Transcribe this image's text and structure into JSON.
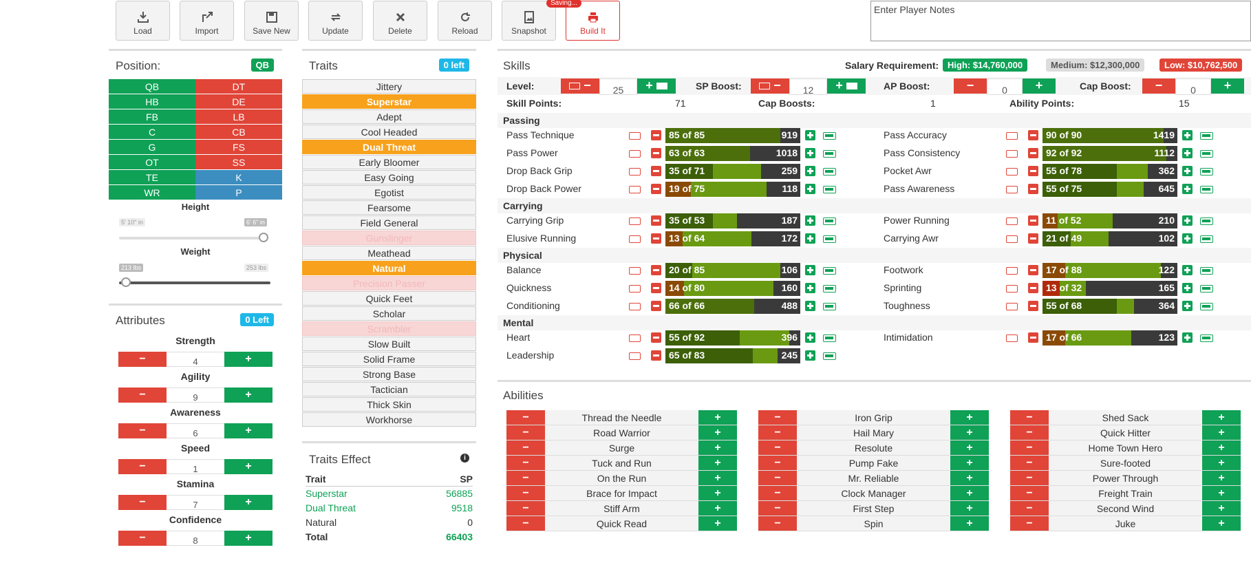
{
  "toolbar": {
    "load": "Load",
    "import": "Import",
    "save_new": "Save New",
    "update": "Update",
    "delete": "Delete",
    "reload": "Reload",
    "snapshot": "Snapshot",
    "saving": "Saving...",
    "build": "Build It"
  },
  "notes": {
    "placeholder": "Enter Player Notes"
  },
  "position": {
    "title": "Position:",
    "selected": "QB",
    "grid": [
      "QB",
      "DT",
      "HB",
      "DE",
      "FB",
      "LB",
      "C",
      "CB",
      "G",
      "FS",
      "OT",
      "SS",
      "TE",
      "K",
      "WR",
      "P"
    ],
    "height_label": "Height",
    "height_min": "5' 10\" in",
    "height_max": "6' 6\" in",
    "weight_label": "Weight",
    "weight_min": "213 lbs",
    "weight_max": "253 lbs"
  },
  "attributes": {
    "title": "Attributes",
    "left": "0 Left",
    "items": [
      {
        "label": "Strength",
        "value": "4"
      },
      {
        "label": "Agility",
        "value": "9"
      },
      {
        "label": "Awareness",
        "value": "6"
      },
      {
        "label": "Speed",
        "value": "1"
      },
      {
        "label": "Stamina",
        "value": "7"
      },
      {
        "label": "Confidence",
        "value": "8"
      }
    ]
  },
  "traits": {
    "title": "Traits",
    "left": "0 left",
    "items": [
      {
        "label": "Jittery",
        "state": "normal"
      },
      {
        "label": "Superstar",
        "state": "selected"
      },
      {
        "label": "Adept",
        "state": "normal"
      },
      {
        "label": "Cool Headed",
        "state": "normal"
      },
      {
        "label": "Dual Threat",
        "state": "selected"
      },
      {
        "label": "Early Bloomer",
        "state": "normal"
      },
      {
        "label": "Easy Going",
        "state": "normal"
      },
      {
        "label": "Egotist",
        "state": "normal"
      },
      {
        "label": "Fearsome",
        "state": "normal"
      },
      {
        "label": "Field General",
        "state": "normal"
      },
      {
        "label": "Gunslinger",
        "state": "disabled"
      },
      {
        "label": "Meathead",
        "state": "normal"
      },
      {
        "label": "Natural",
        "state": "selected"
      },
      {
        "label": "Precision Passer",
        "state": "disabled"
      },
      {
        "label": "Quick Feet",
        "state": "normal"
      },
      {
        "label": "Scholar",
        "state": "normal"
      },
      {
        "label": "Scrambler",
        "state": "disabled"
      },
      {
        "label": "Slow Built",
        "state": "normal"
      },
      {
        "label": "Solid Frame",
        "state": "normal"
      },
      {
        "label": "Strong Base",
        "state": "normal"
      },
      {
        "label": "Tactician",
        "state": "normal"
      },
      {
        "label": "Thick Skin",
        "state": "normal"
      },
      {
        "label": "Workhorse",
        "state": "normal"
      }
    ],
    "effect_title": "Traits Effect",
    "col_trait": "Trait",
    "col_sp": "SP",
    "effects": [
      {
        "trait": "Superstar",
        "sp": "56885"
      },
      {
        "trait": "Dual Threat",
        "sp": "9518"
      },
      {
        "trait": "Natural",
        "sp": "0"
      }
    ],
    "total_label": "Total",
    "total": "66403"
  },
  "skills": {
    "title": "Skills",
    "salary_label": "Salary Requirement:",
    "high": "High: $14,760,000",
    "medium": "Medium: $12,300,000",
    "low": "Low: $10,762,500",
    "level_label": "Level:",
    "level": "25",
    "sp_boost_label": "SP Boost:",
    "sp_boost": "12",
    "ap_boost_label": "AP Boost:",
    "ap_boost": "0",
    "cap_boost_label": "Cap Boost:",
    "cap_boost": "0",
    "skill_points_label": "Skill Points:",
    "skill_points": "71",
    "cap_boosts_label": "Cap Boosts:",
    "cap_boosts": "1",
    "ability_points_label": "Ability Points:",
    "ability_points": "15",
    "categories": {
      "passing": "Passing",
      "carrying": "Carrying",
      "physical": "Physical",
      "mental": "Mental"
    },
    "rows": [
      {
        "name": "Pass Technique",
        "text": "85 of 85",
        "cost": "919",
        "value": 85,
        "cap": 85
      },
      {
        "name": "Pass Accuracy",
        "text": "90 of 90",
        "cost": "1419",
        "value": 90,
        "cap": 90
      },
      {
        "name": "Pass Power",
        "text": "63 of 63",
        "cost": "1018",
        "value": 63,
        "cap": 63
      },
      {
        "name": "Pass Consistency",
        "text": "92 of 92",
        "cost": "1112",
        "value": 92,
        "cap": 92
      },
      {
        "name": "Drop Back Grip",
        "text": "35 of 71",
        "cost": "259",
        "value": 35,
        "cap": 71
      },
      {
        "name": "Pocket Awr",
        "text": "55 of 78",
        "cost": "362",
        "value": 55,
        "cap": 78
      },
      {
        "name": "Drop Back Power",
        "text": "19 of 75",
        "cost": "118",
        "value": 19,
        "cap": 75
      },
      {
        "name": "Pass Awareness",
        "text": "55 of 75",
        "cost": "645",
        "value": 55,
        "cap": 75
      },
      {
        "name": "Carrying Grip",
        "text": "35 of 53",
        "cost": "187",
        "value": 35,
        "cap": 53
      },
      {
        "name": "Power Running",
        "text": "11 of 52",
        "cost": "210",
        "value": 11,
        "cap": 52
      },
      {
        "name": "Elusive Running",
        "text": "13 of 64",
        "cost": "172",
        "value": 13,
        "cap": 64
      },
      {
        "name": "Carrying Awr",
        "text": "21 of 49",
        "cost": "102",
        "value": 21,
        "cap": 49
      },
      {
        "name": "Balance",
        "text": "20 of 85",
        "cost": "106",
        "value": 20,
        "cap": 85
      },
      {
        "name": "Footwork",
        "text": "17 of 88",
        "cost": "122",
        "value": 17,
        "cap": 88
      },
      {
        "name": "Quickness",
        "text": "14 of 80",
        "cost": "160",
        "value": 14,
        "cap": 80
      },
      {
        "name": "Sprinting",
        "text": "13 of 32",
        "cost": "165",
        "value": 13,
        "cap": 32
      },
      {
        "name": "Conditioning",
        "text": "66 of 66",
        "cost": "488",
        "value": 66,
        "cap": 66
      },
      {
        "name": "Toughness",
        "text": "55 of 68",
        "cost": "364",
        "value": 55,
        "cap": 68
      },
      {
        "name": "Heart",
        "text": "55 of 92",
        "cost": "396",
        "value": 55,
        "cap": 92
      },
      {
        "name": "Intimidation",
        "text": "17 of 66",
        "cost": "123",
        "value": 17,
        "cap": 66
      },
      {
        "name": "Leadership",
        "text": "65 of 83",
        "cost": "245",
        "value": 65,
        "cap": 83
      }
    ]
  },
  "abilities": {
    "title": "Abilities",
    "col1": [
      "Thread the Needle",
      "Road Warrior",
      "Surge",
      "Tuck and Run",
      "On the Run",
      "Brace for Impact",
      "Stiff Arm",
      "Quick Read"
    ],
    "col2": [
      "Iron Grip",
      "Hail Mary",
      "Resolute",
      "Pump Fake",
      "Mr. Reliable",
      "Clock Manager",
      "First Step",
      "Spin"
    ],
    "col3": [
      "Shed Sack",
      "Quick Hitter",
      "Home Town Hero",
      "Sure-footed",
      "Power Through",
      "Freight Train",
      "Second Wind",
      "Juke"
    ]
  },
  "colors": {
    "green": "#0fa156",
    "red": "#e04538",
    "blue": "#3c8dc0",
    "orange": "#f7a11c",
    "cyan": "#1eb8e8"
  }
}
